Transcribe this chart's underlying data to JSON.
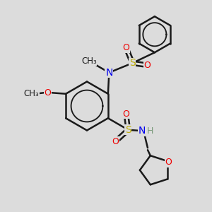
{
  "background_color": "#dcdcdc",
  "atom_colors": {
    "C": "#1a1a1a",
    "N": "#0000ee",
    "O": "#ee0000",
    "S": "#bbaa00",
    "H": "#7a9a7a"
  },
  "bond_color": "#1a1a1a",
  "bond_width": 1.8,
  "figsize": [
    3.0,
    3.0
  ],
  "dpi": 100,
  "xlim": [
    0,
    10
  ],
  "ylim": [
    0,
    10
  ]
}
